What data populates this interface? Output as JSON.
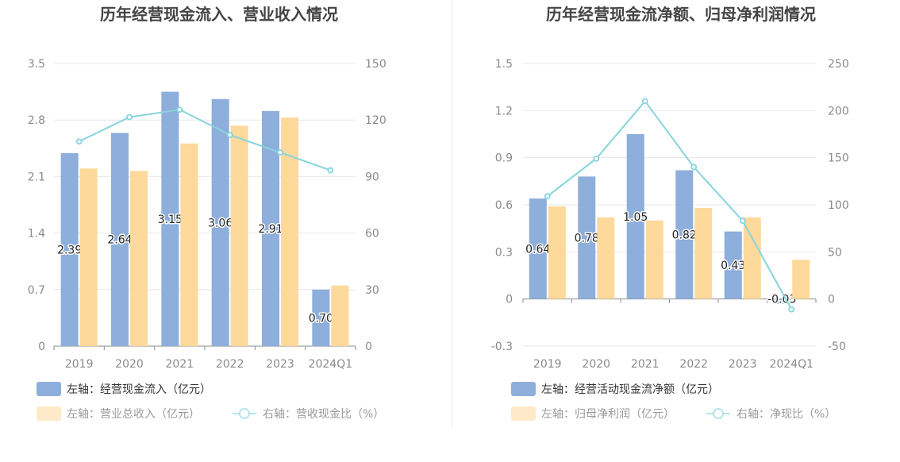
{
  "chart_data": [
    {
      "type": "bar",
      "title": "历年经营现金流入、营业收入情况",
      "categories": [
        "2019",
        "2020",
        "2021",
        "2022",
        "2023",
        "2024Q1"
      ],
      "left_axis": {
        "ticks": [
          "0",
          "0.7",
          "1.4",
          "2.1",
          "2.8",
          "3.5"
        ],
        "range": [
          0,
          3.5
        ]
      },
      "right_axis": {
        "ticks": [
          "0",
          "30",
          "60",
          "90",
          "120",
          "150"
        ],
        "range": [
          0,
          150
        ]
      },
      "series": [
        {
          "name": "左轴：经营现金流入（亿元）",
          "kind": "bar",
          "axis": "left",
          "color": "#8eaedb",
          "values": [
            2.39,
            2.64,
            3.15,
            3.06,
            2.91,
            0.7
          ],
          "labels": [
            "2.39",
            "2.64",
            "3.15",
            "3.06",
            "2.91",
            "0.70"
          ]
        },
        {
          "name": "左轴：营业总收入（亿元）",
          "kind": "bar",
          "axis": "left",
          "color": "#fdd99b",
          "values": [
            2.2,
            2.17,
            2.51,
            2.73,
            2.83,
            0.75
          ]
        },
        {
          "name": "右轴：营收现金比（%）",
          "kind": "line",
          "axis": "right",
          "color": "#86d4dc",
          "values": [
            108.6,
            121.5,
            125.5,
            112.1,
            102.8,
            93.3
          ]
        }
      ],
      "grid": true,
      "legend_position": "bottom-left"
    },
    {
      "type": "bar",
      "title": "历年经营现金流净额、归母净利润情况",
      "categories": [
        "2019",
        "2020",
        "2021",
        "2022",
        "2023",
        "2024Q1"
      ],
      "left_axis": {
        "ticks": [
          "-0.3",
          "0",
          "0.3",
          "0.6",
          "0.9",
          "1.2",
          "1.5"
        ],
        "range": [
          -0.3,
          1.5
        ]
      },
      "right_axis": {
        "ticks": [
          "-50",
          "0",
          "50",
          "100",
          "150",
          "200",
          "250"
        ],
        "range": [
          -50,
          250
        ]
      },
      "series": [
        {
          "name": "左轴：经营活动现金流净额（亿元）",
          "kind": "bar",
          "axis": "left",
          "color": "#8eaedb",
          "values": [
            0.64,
            0.78,
            1.05,
            0.82,
            0.43,
            -0.03
          ],
          "labels": [
            "0.64",
            "0.78",
            "1.05",
            "0.82",
            "0.43",
            "-0.03"
          ]
        },
        {
          "name": "左轴：归母净利润（亿元）",
          "kind": "bar",
          "axis": "left",
          "color": "#fdd99b",
          "values": [
            0.59,
            0.52,
            0.5,
            0.58,
            0.52,
            0.25
          ]
        },
        {
          "name": "右轴：净现比（%）",
          "kind": "line",
          "axis": "right",
          "color": "#86d4dc",
          "values": [
            109,
            149,
            210,
            140,
            83,
            -11
          ]
        }
      ],
      "grid": true,
      "legend_position": "bottom-left"
    }
  ]
}
